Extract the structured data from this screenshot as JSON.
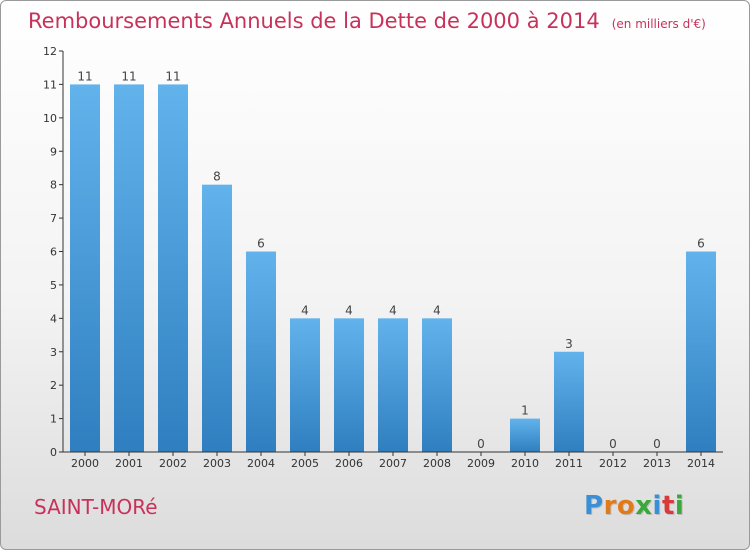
{
  "title": "Remboursements Annuels de la Dette de 2000 à 2014",
  "unit": "(en milliers d'€)",
  "commune": "SAINT-MORé",
  "logo": {
    "text": "Proxiti",
    "letters": [
      "P",
      "r",
      "o",
      "x",
      "i",
      "t",
      "i"
    ],
    "colors": [
      "#3a8fd6",
      "#e07a1b",
      "#e07a1b",
      "#3aa83a",
      "#3a8fd6",
      "#d63a3a",
      "#3aa83a"
    ]
  },
  "colors": {
    "title": "#c8325a",
    "bar_light": "#62b3ec",
    "bar_dark": "#2f7fc0",
    "axis": "#333333"
  },
  "chart_data": {
    "type": "bar",
    "categories": [
      "2000",
      "2001",
      "2002",
      "2003",
      "2004",
      "2005",
      "2006",
      "2007",
      "2008",
      "2009",
      "2010",
      "2011",
      "2012",
      "2013",
      "2014"
    ],
    "values": [
      11,
      11,
      11,
      8,
      6,
      4,
      4,
      4,
      4,
      0,
      1,
      3,
      0,
      0,
      6
    ],
    "title": "Remboursements Annuels de la Dette de 2000 à 2014",
    "xlabel": "",
    "ylabel": "",
    "ylim": [
      0,
      12
    ],
    "yticks": [
      0,
      1,
      2,
      3,
      4,
      5,
      6,
      7,
      8,
      9,
      10,
      11,
      12
    ],
    "grid": false,
    "data_labels": true
  }
}
